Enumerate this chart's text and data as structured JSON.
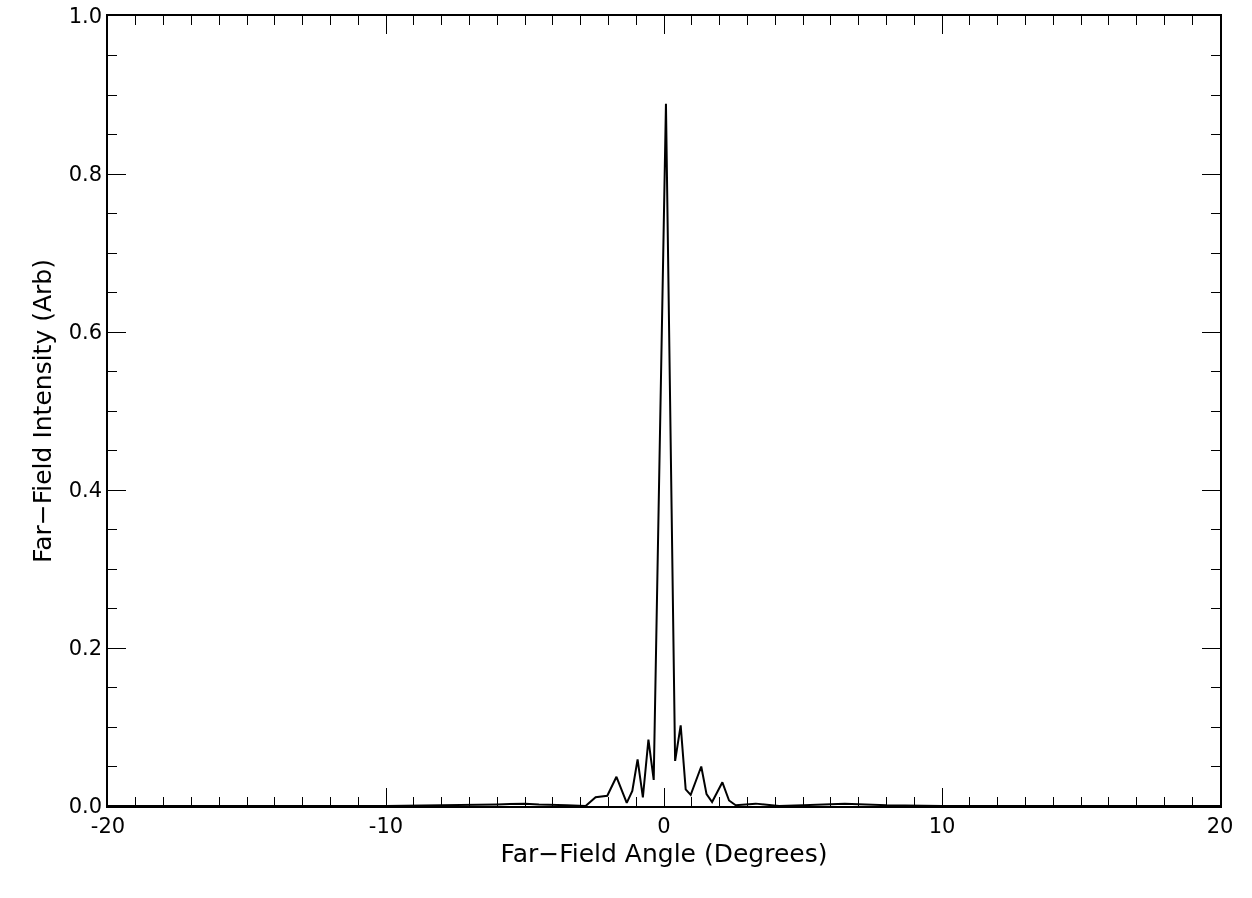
{
  "chart_data": {
    "type": "line",
    "xlabel": "Far−Field Angle (Degrees)",
    "ylabel": "Far−Field Intensity (Arb)",
    "series": [
      {
        "color": "#000000",
        "x": [
          -20,
          -15,
          -10,
          -8,
          -6,
          -5,
          -4.5,
          -3.5,
          -2.82,
          -2.46,
          -2.04,
          -1.71,
          -1.34,
          -1.14,
          -0.95,
          -0.76,
          -0.56,
          -0.37,
          0.07,
          0.4,
          0.6,
          0.78,
          0.96,
          1.34,
          1.53,
          1.73,
          2.1,
          2.34,
          2.58,
          3.3,
          4.14,
          5,
          6.5,
          8,
          10,
          15,
          20
        ],
        "values": [
          0,
          0,
          0,
          0.001,
          0.002,
          0.003,
          0.002,
          0.001,
          0,
          0.011,
          0.013,
          0.037,
          0.004,
          0.019,
          0.059,
          0.011,
          0.084,
          0.033,
          0.889,
          0.057,
          0.102,
          0.021,
          0.014,
          0.05,
          0.015,
          0.005,
          0.03,
          0.007,
          0.001,
          0.003,
          0,
          0.001,
          0.003,
          0.001,
          0,
          0,
          0
        ]
      }
    ],
    "xlim": [
      -20,
      20
    ],
    "xticks": [
      -20,
      -10,
      0,
      10,
      20
    ],
    "ylim": [
      0,
      1
    ],
    "yticks": [
      {
        "value": 0,
        "label": "0.0"
      },
      0.2,
      0.4,
      0.6,
      0.8,
      {
        "value": 1,
        "label": "1.0"
      }
    ],
    "grid": false,
    "marker": "none",
    "line_style": "solid"
  }
}
